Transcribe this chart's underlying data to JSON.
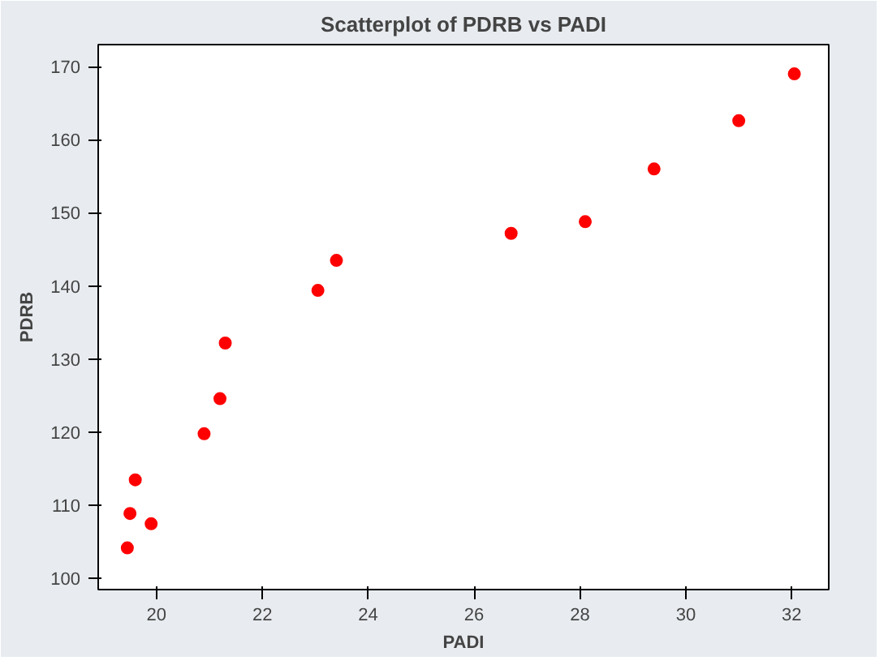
{
  "chart_data": {
    "type": "scatter",
    "title": "Scatterplot of PDRB vs PADI",
    "xlabel": "PADI",
    "ylabel": "PDRB",
    "x": [
      19.45,
      19.5,
      19.6,
      19.9,
      20.9,
      21.2,
      21.3,
      23.05,
      23.4,
      26.7,
      28.1,
      29.4,
      31.0,
      32.05
    ],
    "series": [
      {
        "color": "#ff0000",
        "values": [
          104.2,
          108.9,
          113.5,
          107.5,
          119.8,
          124.6,
          132.2,
          139.4,
          143.5,
          147.2,
          148.8,
          156.0,
          162.6,
          169.0
        ]
      }
    ],
    "xlim": [
      18.9,
      32.7
    ],
    "ylim": [
      98.5,
      173
    ],
    "xticks": [
      20,
      22,
      24,
      26,
      28,
      30,
      32
    ],
    "yticks": [
      100,
      110,
      120,
      130,
      140,
      150,
      160,
      170
    ],
    "marker": "circle",
    "grid": false
  }
}
